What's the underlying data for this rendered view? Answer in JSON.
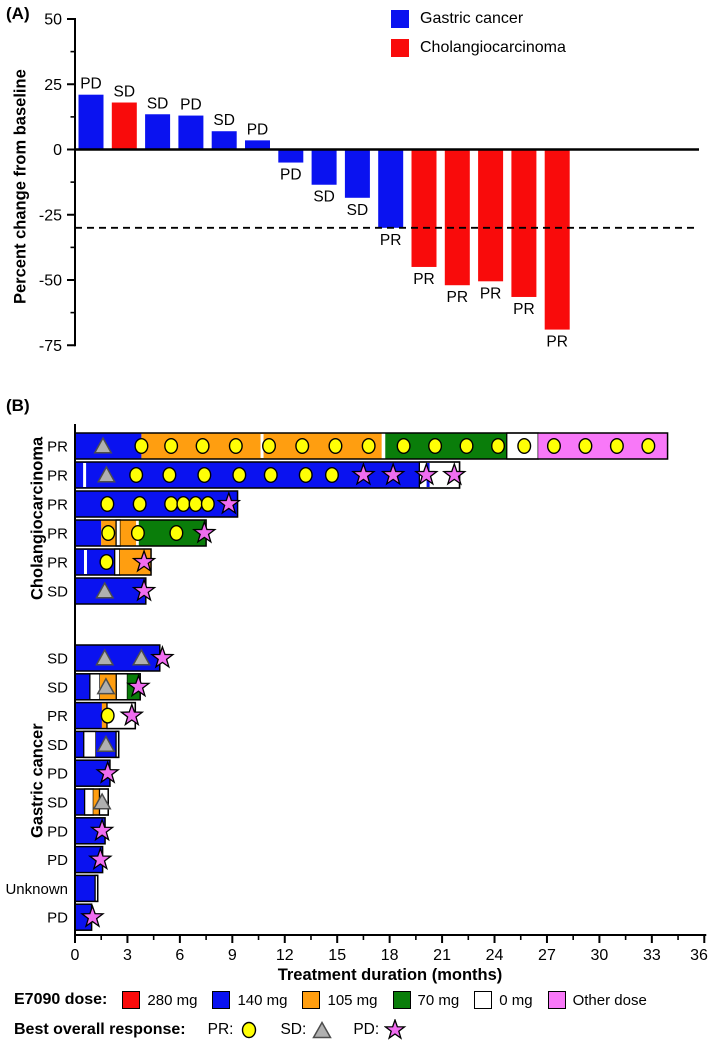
{
  "colors": {
    "gastric": "#0a12f0",
    "cholangiocarcinoma": "#f90b0b",
    "dose_280": "#f90b0b",
    "dose_140": "#0a12f0",
    "dose_105": "#ff9e10",
    "dose_70": "#0a7d0a",
    "dose_0": "#ffffff",
    "dose_other": "#f878f8",
    "marker_pr": "#ffff05",
    "marker_sd": "#b0b0b0",
    "marker_pd": "#f06df0"
  },
  "panel_a": {
    "label": "(A)",
    "y_title": "Percent change from baseline",
    "legend": {
      "items": [
        {
          "label": "Gastric cancer",
          "color_key": "gastric"
        },
        {
          "label": "Cholangiocarcinoma",
          "color_key": "cholangiocarcinoma"
        }
      ]
    }
  },
  "panel_b": {
    "label": "(B)",
    "x_title": "Treatment duration (months)",
    "group_label_top": "Cholangiocarcinoma",
    "group_label_bottom": "Gastric cancer",
    "legend_dose": {
      "title": "E7090 dose:",
      "items": [
        {
          "label": "280 mg",
          "color_key": "dose_280"
        },
        {
          "label": "140 mg",
          "color_key": "dose_140"
        },
        {
          "label": "105 mg",
          "color_key": "dose_105"
        },
        {
          "label": "70 mg",
          "color_key": "dose_70"
        },
        {
          "label": "0 mg",
          "color_key": "dose_0"
        },
        {
          "label": "Other dose",
          "color_key": "dose_other"
        }
      ]
    },
    "legend_response": {
      "title": "Best overall response:",
      "items": [
        {
          "label": "PR:",
          "marker": "circle"
        },
        {
          "label": "SD:",
          "marker": "triangle"
        },
        {
          "label": "PD:",
          "marker": "star"
        }
      ]
    }
  },
  "chart_data": [
    {
      "type": "bar",
      "subtype": "waterfall",
      "title": "",
      "ylabel": "Percent change from baseline",
      "ylim": [
        -75,
        50
      ],
      "yticks": [
        50,
        25,
        0,
        -25,
        -50,
        -75
      ],
      "reference_line_y": -30,
      "grid": false,
      "legend_position": "top-right",
      "bars": [
        {
          "value": 21,
          "response": "PD",
          "group": "Gastric cancer"
        },
        {
          "value": 18,
          "response": "SD",
          "group": "Cholangiocarcinoma"
        },
        {
          "value": 13.5,
          "response": "SD",
          "group": "Gastric cancer"
        },
        {
          "value": 13,
          "response": "PD",
          "group": "Gastric cancer"
        },
        {
          "value": 7,
          "response": "SD",
          "group": "Gastric cancer"
        },
        {
          "value": 3.5,
          "response": "PD",
          "group": "Gastric cancer"
        },
        {
          "value": -5,
          "response": "PD",
          "group": "Gastric cancer"
        },
        {
          "value": -13.5,
          "response": "SD",
          "group": "Gastric cancer"
        },
        {
          "value": -18.5,
          "response": "SD",
          "group": "Gastric cancer"
        },
        {
          "value": -30,
          "response": "PR",
          "group": "Gastric cancer"
        },
        {
          "value": -45,
          "response": "PR",
          "group": "Cholangiocarcinoma"
        },
        {
          "value": -52,
          "response": "PR",
          "group": "Cholangiocarcinoma"
        },
        {
          "value": -50.5,
          "response": "PR",
          "group": "Cholangiocarcinoma"
        },
        {
          "value": -56.5,
          "response": "PR",
          "group": "Cholangiocarcinoma"
        },
        {
          "value": -69,
          "response": "PR",
          "group": "Cholangiocarcinoma"
        }
      ]
    },
    {
      "type": "bar",
      "subtype": "swimmer",
      "xlabel": "Treatment duration (months)",
      "xlim": [
        0,
        36
      ],
      "xticks": [
        0,
        3,
        6,
        9,
        12,
        15,
        18,
        21,
        24,
        27,
        30,
        33,
        36
      ],
      "rows": [
        {
          "group": "Cholangiocarcinoma",
          "response": "PR",
          "end": 33.9,
          "segments": [
            {
              "dose": "140",
              "start": 0,
              "end": 3.8
            },
            {
              "dose": "105",
              "start": 3.8,
              "end": 17.55
            },
            {
              "dose": "gap",
              "start": 17.55,
              "end": 17.75
            },
            {
              "dose": "70",
              "start": 17.75,
              "end": 24.7
            },
            {
              "dose": "0",
              "start": 24.7,
              "end": 26.5
            },
            {
              "dose": "other",
              "start": 26.5,
              "end": 33.9
            }
          ],
          "ticks": [
            {
              "pos": 10.7,
              "color_key": "dose_0"
            }
          ],
          "markers": {
            "triangles": [
              1.6
            ],
            "circles": [
              3.8,
              5.5,
              7.3,
              9.2,
              11.1,
              13.0,
              14.9,
              16.8,
              18.8,
              20.6,
              22.4,
              24.2,
              25.7,
              27.4,
              29.2,
              31.0,
              32.8
            ],
            "stars": []
          }
        },
        {
          "group": "Cholangiocarcinoma",
          "response": "PR",
          "end": 22.0,
          "segments": [
            {
              "dose": "140",
              "start": 0,
              "end": 19.7
            },
            {
              "dose": "0",
              "start": 19.7,
              "end": 22.0
            }
          ],
          "ticks": [
            {
              "pos": 0.55,
              "color_key": "dose_0"
            },
            {
              "pos": 20.2,
              "color_key": "dose_140"
            }
          ],
          "markers": {
            "triangles": [
              1.8
            ],
            "circles": [
              3.5,
              5.4,
              7.4,
              9.4,
              11.2,
              13.2,
              14.7
            ],
            "stars": [
              16.5,
              18.2,
              20.1,
              21.7
            ]
          }
        },
        {
          "group": "Cholangiocarcinoma",
          "response": "PR",
          "end": 9.3,
          "segments": [
            {
              "dose": "140",
              "start": 0,
              "end": 9.3
            }
          ],
          "ticks": [],
          "markers": {
            "triangles": [],
            "circles": [
              1.85,
              3.7,
              5.5,
              6.2,
              6.9,
              7.6
            ],
            "stars": [
              8.8
            ]
          }
        },
        {
          "group": "Cholangiocarcinoma",
          "response": "PR",
          "end": 7.5,
          "segments": [
            {
              "dose": "140",
              "start": 0,
              "end": 1.5
            },
            {
              "dose": "105",
              "start": 1.5,
              "end": 2.35
            },
            {
              "dose": "0",
              "start": 2.35,
              "end": 2.6
            },
            {
              "dose": "105",
              "start": 2.6,
              "end": 3.5
            },
            {
              "dose": "gap",
              "start": 3.5,
              "end": 3.65
            },
            {
              "dose": "70",
              "start": 3.65,
              "end": 7.5
            }
          ],
          "ticks": [],
          "markers": {
            "triangles": [],
            "circles": [
              1.9,
              3.6,
              5.8
            ],
            "stars": [
              7.4
            ]
          }
        },
        {
          "group": "Cholangiocarcinoma",
          "response": "PR",
          "end": 4.35,
          "segments": [
            {
              "dose": "140",
              "start": 0,
              "end": 2.27
            },
            {
              "dose": "0",
              "start": 2.27,
              "end": 2.56
            },
            {
              "dose": "105",
              "start": 2.56,
              "end": 4.35
            }
          ],
          "ticks": [
            {
              "pos": 0.6,
              "color_key": "dose_0"
            }
          ],
          "markers": {
            "triangles": [],
            "circles": [
              1.8
            ],
            "stars": [
              3.95
            ]
          }
        },
        {
          "group": "Cholangiocarcinoma",
          "response": "SD",
          "end": 4.05,
          "segments": [
            {
              "dose": "140",
              "start": 0,
              "end": 4.05
            }
          ],
          "ticks": [],
          "markers": {
            "triangles": [
              1.7
            ],
            "circles": [],
            "stars": [
              3.95
            ]
          }
        },
        {
          "group": "Gastric cancer",
          "response": "SD",
          "end": 4.85,
          "segments": [
            {
              "dose": "140",
              "start": 0,
              "end": 4.85
            }
          ],
          "ticks": [],
          "markers": {
            "triangles": [
              1.7,
              3.8
            ],
            "circles": [],
            "stars": [
              5.0
            ]
          }
        },
        {
          "group": "Gastric cancer",
          "response": "SD",
          "end": 3.73,
          "segments": [
            {
              "dose": "140",
              "start": 0,
              "end": 0.85
            },
            {
              "dose": "0",
              "start": 0.85,
              "end": 1.43
            },
            {
              "dose": "105",
              "start": 1.43,
              "end": 2.36
            },
            {
              "dose": "0",
              "start": 2.36,
              "end": 3.0
            },
            {
              "dose": "70",
              "start": 3.0,
              "end": 3.73
            }
          ],
          "ticks": [],
          "markers": {
            "triangles": [
              1.77
            ],
            "circles": [],
            "stars": [
              3.63
            ]
          }
        },
        {
          "group": "Gastric cancer",
          "response": "PR",
          "end": 3.45,
          "segments": [
            {
              "dose": "140",
              "start": 0,
              "end": 1.54
            },
            {
              "dose": "105",
              "start": 1.54,
              "end": 1.83
            },
            {
              "dose": "0",
              "start": 1.83,
              "end": 3.45
            }
          ],
          "ticks": [],
          "markers": {
            "triangles": [],
            "circles": [
              1.87
            ],
            "stars": [
              3.25
            ]
          }
        },
        {
          "group": "Gastric cancer",
          "response": "SD",
          "end": 2.5,
          "segments": [
            {
              "dose": "140",
              "start": 0,
              "end": 0.5
            },
            {
              "dose": "0",
              "start": 0.5,
              "end": 1.2
            },
            {
              "dose": "140",
              "start": 1.2,
              "end": 2.35
            },
            {
              "dose": "0",
              "start": 2.35,
              "end": 2.5
            }
          ],
          "ticks": [],
          "markers": {
            "triangles": [
              1.77
            ],
            "circles": [],
            "stars": []
          }
        },
        {
          "group": "Gastric cancer",
          "response": "PD",
          "end": 2.0,
          "segments": [
            {
              "dose": "140",
              "start": 0,
              "end": 2.0
            }
          ],
          "ticks": [],
          "markers": {
            "triangles": [],
            "circles": [],
            "stars": [
              1.87
            ]
          }
        },
        {
          "group": "Gastric cancer",
          "response": "SD",
          "end": 1.9,
          "segments": [
            {
              "dose": "140",
              "start": 0,
              "end": 0.55
            },
            {
              "dose": "0",
              "start": 0.55,
              "end": 1.05
            },
            {
              "dose": "105",
              "start": 1.05,
              "end": 1.4
            },
            {
              "dose": "0",
              "start": 1.4,
              "end": 1.9
            }
          ],
          "ticks": [],
          "markers": {
            "triangles": [
              1.55
            ],
            "circles": [],
            "stars": []
          }
        },
        {
          "group": "Gastric cancer",
          "response": "PD",
          "end": 1.72,
          "segments": [
            {
              "dose": "140",
              "start": 0,
              "end": 1.72
            }
          ],
          "ticks": [],
          "markers": {
            "triangles": [],
            "circles": [],
            "stars": [
              1.55
            ]
          }
        },
        {
          "group": "Gastric cancer",
          "response": "PD",
          "end": 1.58,
          "segments": [
            {
              "dose": "140",
              "start": 0,
              "end": 1.58
            }
          ],
          "ticks": [],
          "markers": {
            "triangles": [],
            "circles": [],
            "stars": [
              1.45
            ]
          }
        },
        {
          "group": "Gastric cancer",
          "response": "Unknown",
          "end": 1.3,
          "segments": [
            {
              "dose": "140",
              "start": 0,
              "end": 1.15
            },
            {
              "dose": "0",
              "start": 1.15,
              "end": 1.3
            }
          ],
          "ticks": [],
          "markers": {
            "triangles": [],
            "circles": [],
            "stars": []
          }
        },
        {
          "group": "Gastric cancer",
          "response": "PD",
          "end": 0.95,
          "segments": [
            {
              "dose": "140",
              "start": 0,
              "end": 0.95
            }
          ],
          "ticks": [],
          "markers": {
            "triangles": [],
            "circles": [],
            "stars": [
              1.0
            ]
          }
        }
      ]
    }
  ]
}
